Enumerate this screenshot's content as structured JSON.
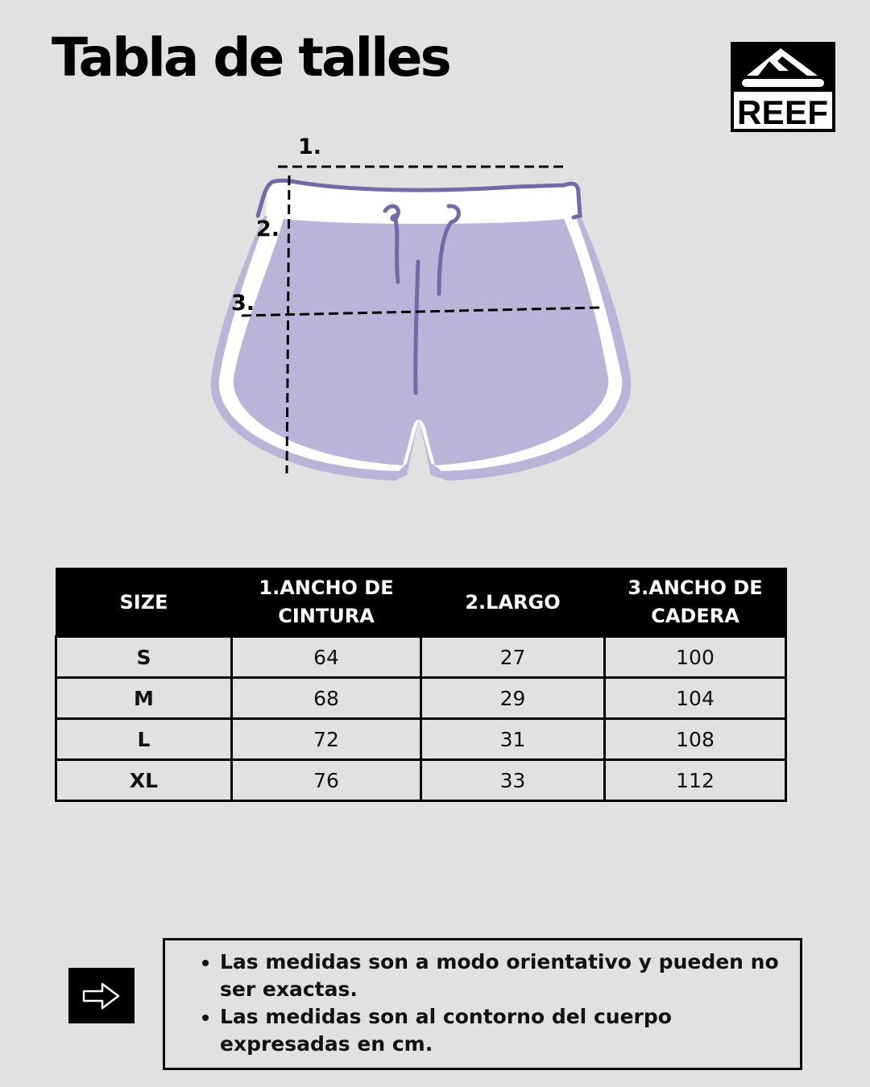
{
  "title": "Tabla de talles",
  "logo": {
    "text": "REEF"
  },
  "diagram": {
    "labels": [
      "1.",
      "2.",
      "3."
    ],
    "colors": {
      "fill": "#bcb4d8",
      "outline": "#7369a8",
      "band": "#ffffff"
    }
  },
  "table": {
    "headers": [
      "SIZE",
      [
        "1.ANCHO DE",
        "CINTURA"
      ],
      "2.LARGO",
      [
        "3.ANCHO DE",
        "CADERA"
      ]
    ],
    "rows": [
      [
        "S",
        "64",
        "27",
        "100"
      ],
      [
        "M",
        "68",
        "29",
        "104"
      ],
      [
        "L",
        "72",
        "31",
        "108"
      ],
      [
        "XL",
        "76",
        "33",
        "112"
      ]
    ]
  },
  "notes": {
    "icon": "arrow-right-icon",
    "items": [
      "Las medidas son a modo orientativo y pueden no ser exactas.",
      "Las medidas son al contorno del cuerpo expresadas en cm."
    ]
  }
}
